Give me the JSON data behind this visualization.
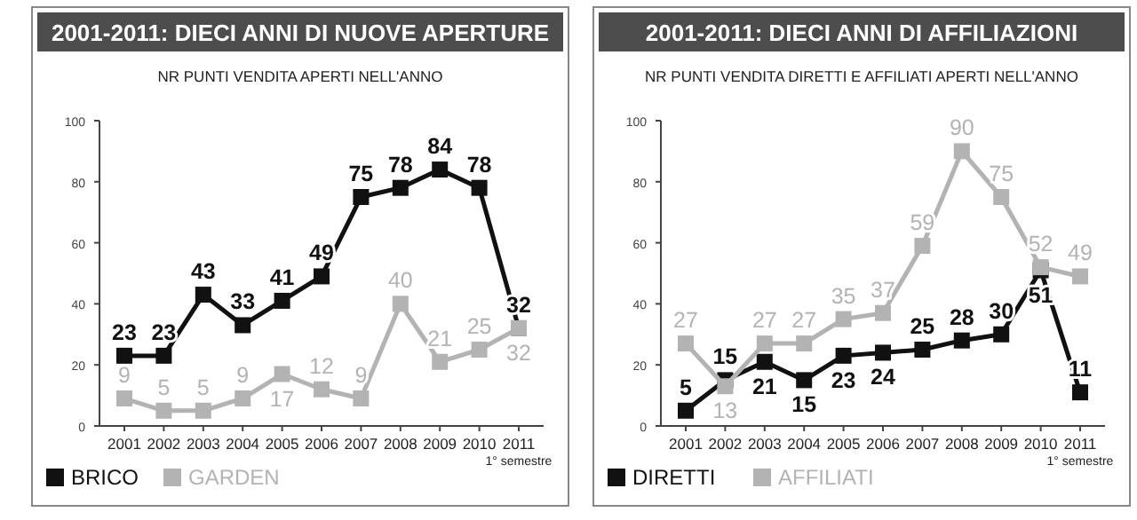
{
  "chart_data": [
    {
      "type": "line",
      "title": "2001-2011: DIECI ANNI DI NUOVE APERTURE",
      "subtitle": "NR PUNTI VENDITA APERTI NELL'ANNO",
      "categories": [
        "2001",
        "2002",
        "2003",
        "2004",
        "2005",
        "2006",
        "2007",
        "2008",
        "2009",
        "2010",
        "2011\n1° semestre"
      ],
      "ylim": [
        0,
        100
      ],
      "yticks": [
        0,
        20,
        40,
        60,
        80,
        100
      ],
      "marker": "square",
      "data_labels": true,
      "legend": "bottom left",
      "grid": false,
      "series": [
        {
          "name": "BRICO",
          "color": "#111111",
          "values": [
            23,
            23,
            43,
            33,
            41,
            49,
            75,
            78,
            84,
            78,
            32
          ]
        },
        {
          "name": "GARDEN",
          "color": "#b3b3b3",
          "values": [
            9,
            5,
            5,
            9,
            17,
            12,
            9,
            40,
            21,
            25,
            32
          ]
        }
      ]
    },
    {
      "type": "line",
      "title": "2001-2011: DIECI ANNI DI AFFILIAZIONI",
      "subtitle": "NR PUNTI VENDITA DIRETTI E AFFILIATI APERTI NELL'ANNO",
      "categories": [
        "2001",
        "2002",
        "2003",
        "2004",
        "2005",
        "2006",
        "2007",
        "2008",
        "2009",
        "2010",
        "2011\n1° semestre"
      ],
      "ylim": [
        0,
        100
      ],
      "yticks": [
        0,
        20,
        40,
        60,
        80,
        100
      ],
      "marker": "square",
      "data_labels": true,
      "legend": "bottom left",
      "grid": false,
      "series": [
        {
          "name": "DIRETTI",
          "color": "#111111",
          "values": [
            5,
            15,
            21,
            15,
            23,
            24,
            25,
            28,
            30,
            51,
            11
          ]
        },
        {
          "name": "AFFILIATI",
          "color": "#b3b3b3",
          "values": [
            27,
            13,
            27,
            27,
            35,
            37,
            59,
            90,
            75,
            52,
            49
          ]
        }
      ]
    }
  ]
}
